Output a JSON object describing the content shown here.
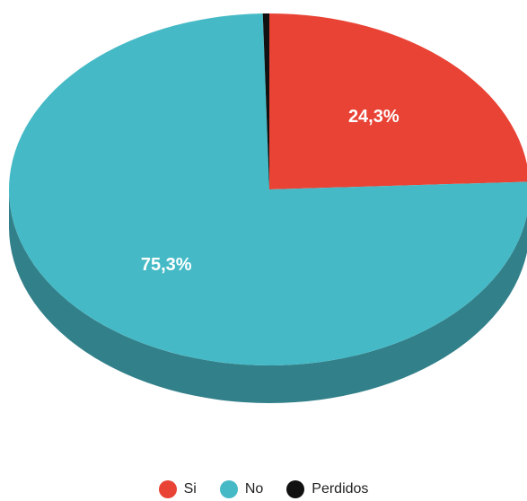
{
  "chart_data": {
    "type": "pie",
    "style": "3d",
    "start": "top",
    "direction": "clockwise",
    "legend_position": "bottom",
    "categories": [
      "Si",
      "No",
      "Perdidos"
    ],
    "values": [
      24.3,
      75.3,
      0.4
    ],
    "data_labels": [
      "24,3%",
      "75,3%",
      ""
    ],
    "colors": [
      "#e84335",
      "#45bac6",
      "#111111"
    ],
    "side_colors": [
      "#a8342a",
      "#32808a",
      "#000000"
    ]
  }
}
